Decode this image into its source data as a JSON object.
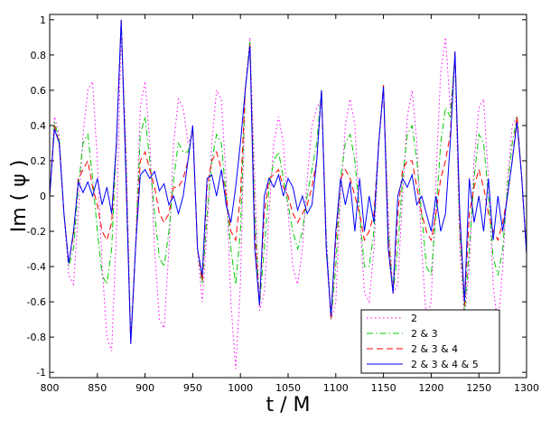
{
  "chart_data": {
    "type": "line",
    "xlabel": "t / M",
    "ylabel": "Im ( ψ )",
    "xlim": [
      800,
      1300
    ],
    "ylim": [
      -1.03,
      1.03
    ],
    "xticks": [
      800,
      850,
      900,
      950,
      1000,
      1050,
      1100,
      1150,
      1200,
      1250,
      1300
    ],
    "yticks": [
      -1,
      -0.8,
      -0.6,
      -0.4,
      -0.2,
      0,
      0.2,
      0.4,
      0.6,
      0.8,
      1
    ],
    "grid": false,
    "legend": "lower right",
    "x": [
      800,
      805,
      810,
      815,
      820,
      825,
      830,
      835,
      840,
      845,
      850,
      855,
      860,
      865,
      870,
      875,
      880,
      885,
      890,
      895,
      900,
      905,
      910,
      915,
      920,
      925,
      930,
      935,
      940,
      945,
      950,
      955,
      960,
      965,
      970,
      975,
      980,
      985,
      990,
      995,
      1000,
      1005,
      1010,
      1015,
      1020,
      1025,
      1030,
      1035,
      1040,
      1045,
      1050,
      1055,
      1060,
      1065,
      1070,
      1075,
      1080,
      1085,
      1090,
      1095,
      1100,
      1105,
      1110,
      1115,
      1120,
      1125,
      1130,
      1135,
      1140,
      1145,
      1150,
      1155,
      1160,
      1165,
      1170,
      1175,
      1180,
      1185,
      1190,
      1195,
      1200,
      1205,
      1210,
      1215,
      1220,
      1225,
      1230,
      1235,
      1240,
      1245,
      1250,
      1255,
      1260,
      1265,
      1270,
      1275,
      1280,
      1285,
      1290,
      1295,
      1300
    ],
    "series": [
      {
        "name": "2",
        "color": "#ff00ff",
        "dash": "1.5 3",
        "values": [
          0,
          0.45,
          0.35,
          -0.1,
          -0.45,
          -0.5,
          -0.1,
          0.35,
          0.6,
          0.65,
          0.2,
          -0.4,
          -0.8,
          -0.88,
          -0.2,
          0.95,
          0.3,
          -0.8,
          -0.3,
          0.5,
          0.65,
          0.3,
          -0.3,
          -0.7,
          -0.75,
          -0.3,
          0.3,
          0.55,
          0.5,
          0.3,
          0.35,
          -0.3,
          -0.6,
          -0.2,
          0.3,
          0.6,
          0.55,
          0.1,
          -0.6,
          -0.98,
          -0.5,
          0.6,
          0.9,
          0.1,
          -0.65,
          -0.55,
          -0.1,
          0.3,
          0.45,
          0.3,
          -0.1,
          -0.4,
          -0.5,
          -0.3,
          0.1,
          0.4,
          0.5,
          0.55,
          -0.2,
          -0.7,
          -0.6,
          0,
          0.4,
          0.55,
          0.4,
          -0.1,
          -0.55,
          -0.6,
          -0.3,
          0.3,
          0.6,
          -0.1,
          -0.55,
          -0.5,
          0,
          0.45,
          0.6,
          0.3,
          -0.3,
          -0.7,
          -0.6,
          0.1,
          0.7,
          0.9,
          0.5,
          0.75,
          -0.3,
          -0.7,
          -0.4,
          0.2,
          0.5,
          0.55,
          0.1,
          -0.5,
          -0.75,
          -0.4,
          0.1,
          0.4,
          0.45,
          0.1,
          -0.3
        ]
      },
      {
        "name": "2 & 3",
        "color": "#00cc00",
        "dash": "7 3 1.5 3",
        "values": [
          0,
          0.42,
          0.32,
          -0.1,
          -0.4,
          -0.3,
          0.05,
          0.3,
          0.35,
          0.1,
          -0.2,
          -0.45,
          -0.5,
          -0.3,
          0.3,
          0.98,
          0.2,
          -0.82,
          -0.3,
          0.35,
          0.45,
          0.2,
          -0.1,
          -0.35,
          -0.4,
          -0.2,
          0.1,
          0.3,
          0.25,
          0.25,
          0.38,
          -0.3,
          -0.5,
          -0.1,
          0.2,
          0.35,
          0.3,
          0,
          -0.3,
          -0.5,
          -0.2,
          0.6,
          0.88,
          -0.1,
          -0.62,
          -0.3,
          0.05,
          0.2,
          0.25,
          0.1,
          -0.05,
          -0.2,
          -0.3,
          -0.2,
          0,
          0.15,
          0.3,
          0.6,
          -0.25,
          -0.7,
          -0.4,
          0.1,
          0.3,
          0.35,
          0.2,
          -0.1,
          -0.4,
          -0.4,
          -0.2,
          0.3,
          0.62,
          -0.2,
          -0.55,
          -0.3,
          0.1,
          0.35,
          0.4,
          0.2,
          -0.1,
          -0.4,
          -0.45,
          -0.1,
          0.3,
          0.5,
          0.45,
          0.8,
          -0.2,
          -0.65,
          -0.3,
          0.1,
          0.35,
          0.3,
          0,
          -0.35,
          -0.45,
          -0.3,
          0.05,
          0.3,
          0.45,
          0.1,
          -0.32
        ]
      },
      {
        "name": "2 & 3 & 4",
        "color": "#ff0000",
        "dash": "7 4",
        "values": [
          0,
          0.4,
          0.3,
          -0.1,
          -0.38,
          -0.22,
          0.1,
          0.15,
          0.2,
          0.05,
          -0.05,
          -0.2,
          -0.25,
          -0.15,
          0.3,
          1,
          0.15,
          -0.84,
          -0.3,
          0.2,
          0.25,
          0.15,
          0.05,
          -0.1,
          -0.15,
          -0.1,
          0.05,
          0.05,
          0.1,
          0.2,
          0.4,
          -0.3,
          -0.48,
          0.05,
          0.2,
          0.25,
          0.15,
          0,
          -0.2,
          -0.25,
          0,
          0.6,
          0.86,
          -0.2,
          -0.62,
          -0.1,
          0.1,
          0.12,
          0.15,
          0.05,
          0,
          -0.1,
          -0.15,
          -0.1,
          -0.05,
          0.05,
          0.2,
          0.6,
          -0.3,
          -0.7,
          -0.25,
          0.1,
          0.15,
          0.1,
          0,
          -0.1,
          -0.25,
          -0.2,
          -0.1,
          0.3,
          0.63,
          -0.25,
          -0.55,
          -0.1,
          0.15,
          0.2,
          0.2,
          0.05,
          -0.1,
          -0.2,
          -0.25,
          -0.1,
          0.1,
          0.2,
          0.35,
          0.82,
          -0.15,
          -0.62,
          -0.1,
          0.05,
          0.15,
          0.05,
          -0.1,
          -0.2,
          -0.25,
          -0.15,
          0,
          0.2,
          0.45,
          0.1,
          -0.33
        ]
      },
      {
        "name": "2 & 3 & 4 & 5",
        "color": "#0000ff",
        "dash": "",
        "values": [
          0,
          0.38,
          0.3,
          -0.1,
          -0.38,
          -0.2,
          0.08,
          0.02,
          0.08,
          0,
          0.1,
          -0.05,
          0.05,
          -0.1,
          0.3,
          1,
          0.1,
          -0.84,
          -0.3,
          0.12,
          0.15,
          0.1,
          0.14,
          0.03,
          0.07,
          -0.05,
          0,
          -0.1,
          0,
          0.2,
          0.4,
          -0.3,
          -0.45,
          0.1,
          0.12,
          0,
          0.15,
          -0.05,
          -0.15,
          0.05,
          0.3,
          0.6,
          0.85,
          -0.3,
          -0.62,
          0,
          0.1,
          0.05,
          0.12,
          0,
          0.1,
          0.05,
          -0.08,
          0,
          -0.1,
          -0.05,
          0.2,
          0.6,
          -0.3,
          -0.68,
          -0.2,
          0.1,
          -0.05,
          0.08,
          -0.2,
          0.1,
          -0.2,
          0,
          -0.15,
          0.3,
          0.62,
          -0.3,
          -0.55,
          0,
          0.1,
          0.05,
          0.12,
          -0.05,
          0,
          -0.1,
          -0.2,
          0,
          -0.2,
          -0.1,
          0.3,
          0.82,
          -0.1,
          -0.6,
          0.1,
          -0.15,
          0,
          -0.2,
          0.1,
          -0.25,
          0,
          -0.2,
          0,
          0.2,
          0.42,
          0.1,
          -0.33
        ]
      }
    ]
  }
}
